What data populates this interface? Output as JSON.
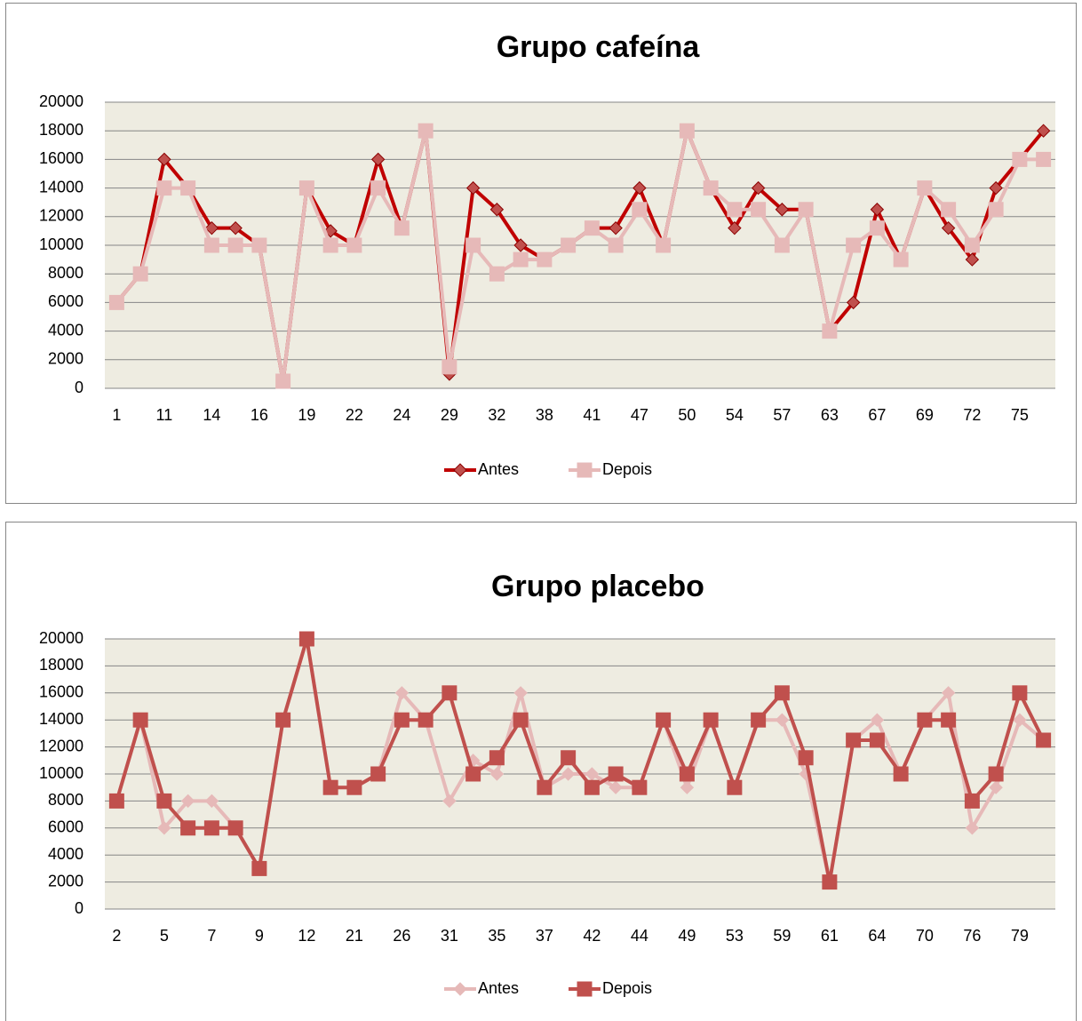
{
  "chart_data": [
    {
      "type": "line",
      "title": "Grupo cafeína",
      "categories": [
        "1",
        null,
        "11",
        null,
        "14",
        null,
        "16",
        null,
        "19",
        null,
        "22",
        null,
        "24",
        null,
        "29",
        null,
        "32",
        null,
        "38",
        null,
        "41",
        null,
        "47",
        null,
        "50",
        null,
        "54",
        null,
        "57",
        null,
        "63",
        null,
        "67",
        null,
        "69",
        null,
        "72",
        null,
        "75",
        null
      ],
      "series": [
        {
          "name": "Antes",
          "color": "#c00000",
          "marker": "diamond",
          "marker_color": "#c0504d",
          "values": [
            6000,
            8000,
            16000,
            14000,
            11200,
            11200,
            10000,
            500,
            14000,
            11000,
            10000,
            16000,
            11200,
            18000,
            1000,
            14000,
            12500,
            10000,
            9000,
            10000,
            11200,
            11200,
            14000,
            10000,
            18000,
            14000,
            11200,
            14000,
            12500,
            12500,
            4000,
            6000,
            12500,
            9000,
            14000,
            11200,
            9000,
            14000,
            16000,
            18000
          ]
        },
        {
          "name": "Depois",
          "color": "#e6b9b8",
          "marker": "square",
          "marker_color": "#e6b9b8",
          "values": [
            6000,
            8000,
            14000,
            14000,
            10000,
            10000,
            10000,
            500,
            14000,
            10000,
            10000,
            14000,
            11200,
            18000,
            1500,
            10000,
            8000,
            9000,
            9000,
            10000,
            11200,
            10000,
            12500,
            10000,
            18000,
            14000,
            12500,
            12500,
            10000,
            12500,
            4000,
            10000,
            11200,
            9000,
            14000,
            12500,
            10000,
            12500,
            16000,
            16000
          ]
        }
      ],
      "ylim": [
        0,
        20000
      ],
      "yticks": [
        0,
        2000,
        4000,
        6000,
        8000,
        10000,
        12000,
        14000,
        16000,
        18000,
        20000
      ],
      "grid": true,
      "legend": "bottom"
    },
    {
      "type": "line",
      "title": "Grupo placebo",
      "categories": [
        "2",
        null,
        "5",
        null,
        "7",
        null,
        "9",
        null,
        "12",
        null,
        "21",
        null,
        "26",
        null,
        "31",
        null,
        "35",
        null,
        "37",
        null,
        "42",
        null,
        "44",
        null,
        "49",
        null,
        "53",
        null,
        "59",
        null,
        "61",
        null,
        "64",
        null,
        "70",
        null,
        "76",
        null,
        "79",
        null
      ],
      "series": [
        {
          "name": "Antes",
          "color": "#e6b9b8",
          "marker": "diamond",
          "marker_color": "#e6b9b8",
          "values": [
            8000,
            14000,
            6000,
            8000,
            8000,
            6000,
            3000,
            14000,
            20000,
            9000,
            9000,
            10000,
            16000,
            14000,
            8000,
            11000,
            10000,
            16000,
            9000,
            10000,
            10000,
            9000,
            9000,
            14000,
            9000,
            14000,
            9000,
            14000,
            14000,
            10000,
            2000,
            12500,
            14000,
            10000,
            14000,
            16000,
            6000,
            9000,
            14000,
            12500
          ]
        },
        {
          "name": "Depois",
          "color": "#c0504d",
          "marker": "square",
          "marker_color": "#c0504d",
          "values": [
            8000,
            14000,
            8000,
            6000,
            6000,
            6000,
            3000,
            14000,
            20000,
            9000,
            9000,
            10000,
            14000,
            14000,
            16000,
            10000,
            11200,
            14000,
            9000,
            11200,
            9000,
            10000,
            9000,
            14000,
            10000,
            14000,
            9000,
            14000,
            16000,
            11200,
            2000,
            12500,
            12500,
            10000,
            14000,
            14000,
            8000,
            10000,
            16000,
            12500
          ]
        }
      ],
      "ylim": [
        0,
        20000
      ],
      "yticks": [
        0,
        2000,
        4000,
        6000,
        8000,
        10000,
        12000,
        14000,
        16000,
        18000,
        20000
      ],
      "grid": true,
      "legend": "bottom"
    }
  ]
}
